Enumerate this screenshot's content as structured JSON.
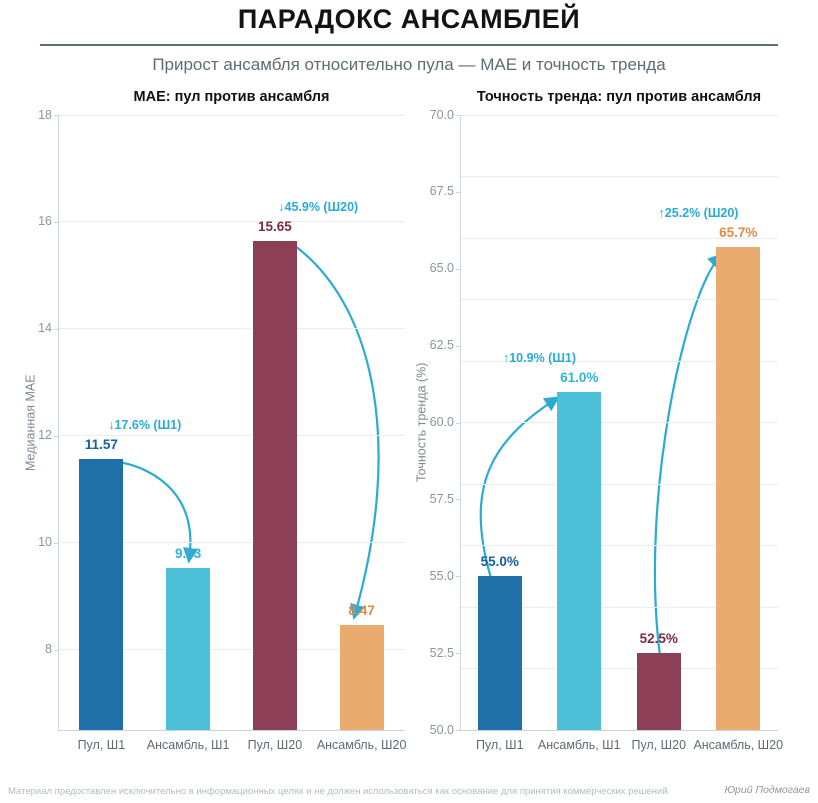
{
  "header": {
    "title": "ПАРАДОКС АНСАМБЛЕЙ",
    "subtitle": "Прирост ансамбля относительно пула — MAE и точность тренда"
  },
  "footer": {
    "disclaimer": "Материал предоставлен исключительно в информационных целях и не должен использоваться как основание для принятия коммерческих решений.",
    "author": "Юрий Подмогаев"
  },
  "colors": {
    "arrow_accent": "#29abd4",
    "pool_s1_bar": "#1f6fa8",
    "ensemble_s1_bar": "#4cc0d8",
    "pool_s20_bar": "#8e3f58",
    "ensemble_s20_bar": "#e9ab6e",
    "gridline": "#e9edf0",
    "axis_line": "#ccd5da",
    "ytick_text": "#8b959c",
    "xtick_text": "#5f6a72"
  },
  "chart_data": [
    {
      "type": "bar",
      "title": "MAE: пул против ансамбля",
      "ylabel": "Медианная MAE",
      "xlabel": "",
      "categories": [
        "Пул, Ш1",
        "Ансамбль, Ш1",
        "Пул, Ш20",
        "Ансамбль, Ш20"
      ],
      "values": [
        11.57,
        9.53,
        15.65,
        8.47
      ],
      "value_labels": [
        "11.57",
        "9.53",
        "15.65",
        "8.47"
      ],
      "bar_colors": [
        "#1f6fa8",
        "#4cc0d8",
        "#8e3f58",
        "#e9ab6e"
      ],
      "value_label_colors": [
        "#15619b",
        "#2fb4d4",
        "#7e2a45",
        "#e08a42"
      ],
      "ylim": [
        6.5,
        18
      ],
      "yticks": [
        8,
        10,
        12,
        14,
        16,
        18
      ],
      "ytick_labels": [
        "8",
        "10",
        "12",
        "14",
        "16",
        "18"
      ],
      "gridlines": [
        8,
        10,
        12,
        14,
        16,
        18
      ],
      "grid": "on",
      "legend": "none",
      "annotations": [
        {
          "text": "↓17.6% (Ш1)",
          "from": 0,
          "to": 1,
          "direction": "down"
        },
        {
          "text": "↓45.9% (Ш20)",
          "from": 2,
          "to": 3,
          "direction": "down"
        }
      ]
    },
    {
      "type": "bar",
      "title": "Точность тренда: пул против ансамбля",
      "ylabel": "Точность тренда (%)",
      "xlabel": "",
      "categories": [
        "Пул, Ш1",
        "Ансамбль, Ш1",
        "Пул, Ш20",
        "Ансамбль, Ш20"
      ],
      "values": [
        55.0,
        61.0,
        52.5,
        65.7
      ],
      "value_labels": [
        "55.0%",
        "61.0%",
        "52.5%",
        "65.7%"
      ],
      "bar_colors": [
        "#1f6fa8",
        "#4cc0d8",
        "#8e3f58",
        "#e9ab6e"
      ],
      "value_label_colors": [
        "#15619b",
        "#2fb4d4",
        "#7e2a45",
        "#e08a42"
      ],
      "ylim": [
        50,
        70
      ],
      "yticks": [
        50,
        52.5,
        55,
        57.5,
        60,
        62.5,
        65,
        67.5,
        70
      ],
      "ytick_labels": [
        "50.0",
        "52.5",
        "55.0",
        "57.5",
        "60.0",
        "62.5",
        "65.0",
        "67.5",
        "70.0"
      ],
      "gridlines": [
        52,
        54,
        56,
        58,
        60,
        62,
        64,
        66,
        68,
        70
      ],
      "grid": "on",
      "legend": "none",
      "annotations": [
        {
          "text": "↑10.9% (Ш1)",
          "from": 0,
          "to": 1,
          "direction": "up"
        },
        {
          "text": "↑25.2% (Ш20)",
          "from": 2,
          "to": 3,
          "direction": "up"
        }
      ]
    }
  ]
}
